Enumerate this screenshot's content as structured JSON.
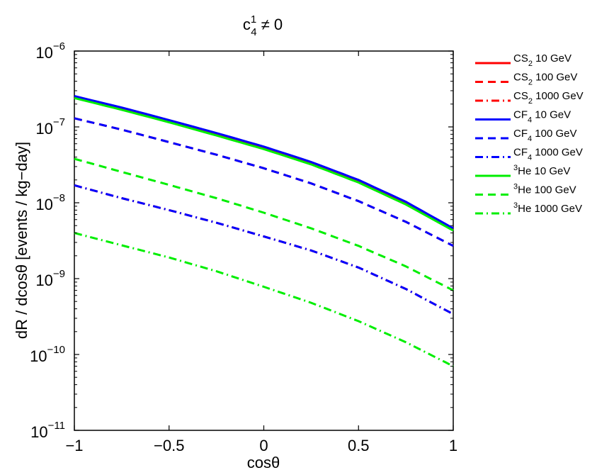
{
  "chart_data": {
    "type": "line",
    "title": {
      "base": "c",
      "sup": "1",
      "sub": "4",
      "rest": " ≠ 0"
    },
    "xlabel": "cosθ",
    "ylabel": "dR / dcosθ  [events / kg−day]",
    "xlim": [
      -1,
      1
    ],
    "ylim": [
      1e-11,
      1e-06
    ],
    "yscale": "log",
    "grid": false,
    "legend_position": "outside-right",
    "x_ticks": [
      -1,
      -0.5,
      0,
      0.5,
      1
    ],
    "x_tick_labels": [
      "−1",
      "−0.5",
      "0",
      "0.5",
      "1"
    ],
    "y_ticks": [
      {
        "value": 1e-06,
        "base": "10",
        "exp": "−6"
      },
      {
        "value": 1e-07,
        "base": "10",
        "exp": "−7"
      },
      {
        "value": 1e-08,
        "base": "10",
        "exp": "−8"
      },
      {
        "value": 1e-09,
        "base": "10",
        "exp": "−9"
      },
      {
        "value": 1e-10,
        "base": "10",
        "exp": "−10"
      },
      {
        "value": 1e-11,
        "base": "10",
        "exp": "−11"
      }
    ],
    "x": [
      -1,
      -0.75,
      -0.5,
      -0.25,
      0,
      0.25,
      0.5,
      0.75,
      1
    ],
    "series": [
      {
        "name": "CS2 10 GeV",
        "legend": {
          "pre": "",
          "main": "CS",
          "sup": "",
          "sub": "2",
          "post": " 10 GeV"
        },
        "color": "#ff0000",
        "dash": "solid",
        "values": [
          2.45e-07,
          1.72e-07,
          1.17e-07,
          7.9e-08,
          5.25e-08,
          3.3e-08,
          1.9e-08,
          9.8e-09,
          4.4e-09
        ]
      },
      {
        "name": "CS2 100 GeV",
        "legend": {
          "pre": "",
          "main": "CS",
          "sup": "",
          "sub": "2",
          "post": " 100 GeV"
        },
        "color": "#ff0000",
        "dash": "dashed",
        "values": [
          1.3e-07,
          9.2e-08,
          6.3e-08,
          4.3e-08,
          2.85e-08,
          1.8e-08,
          1.05e-08,
          5.6e-09,
          2.7e-09
        ]
      },
      {
        "name": "CS2 1000 GeV",
        "legend": {
          "pre": "",
          "main": "CS",
          "sup": "",
          "sub": "2",
          "post": " 1000 GeV"
        },
        "color": "#ff0000",
        "dash": "dashdot",
        "values": [
          1.7e-08,
          1.15e-08,
          8e-09,
          5.45e-09,
          3.6e-09,
          2.35e-09,
          1.4e-09,
          7.3e-10,
          3.4e-10
        ]
      },
      {
        "name": "CF4 10 GeV",
        "legend": {
          "pre": "",
          "main": "CF",
          "sup": "",
          "sub": "4",
          "post": " 10 GeV"
        },
        "color": "#0000ff",
        "dash": "solid",
        "values": [
          2.55e-07,
          1.8e-07,
          1.23e-07,
          8.3e-08,
          5.5e-08,
          3.45e-08,
          2e-08,
          1.03e-08,
          4.6e-09
        ]
      },
      {
        "name": "CF4 100 GeV",
        "legend": {
          "pre": "",
          "main": "CF",
          "sup": "",
          "sub": "4",
          "post": " 100 GeV"
        },
        "color": "#0000ff",
        "dash": "dashed",
        "values": [
          1.3e-07,
          9.2e-08,
          6.3e-08,
          4.3e-08,
          2.85e-08,
          1.8e-08,
          1.05e-08,
          5.6e-09,
          2.7e-09
        ]
      },
      {
        "name": "CF4 1000 GeV",
        "legend": {
          "pre": "",
          "main": "CF",
          "sup": "",
          "sub": "4",
          "post": " 1000 GeV"
        },
        "color": "#0000ff",
        "dash": "dashdot",
        "values": [
          1.7e-08,
          1.15e-08,
          8e-09,
          5.45e-09,
          3.6e-09,
          2.35e-09,
          1.4e-09,
          7.3e-10,
          3.4e-10
        ]
      },
      {
        "name": "3He 10 GeV",
        "legend": {
          "pre": "",
          "main": "He",
          "sup": "3",
          "sub": "",
          "post": " 10 GeV"
        },
        "color": "#00ee00",
        "dash": "solid",
        "values": [
          2.4e-07,
          1.68e-07,
          1.15e-07,
          7.7e-08,
          5.1e-08,
          3.2e-08,
          1.85e-08,
          9.5e-09,
          4.3e-09
        ]
      },
      {
        "name": "3He 100 GeV",
        "legend": {
          "pre": "",
          "main": "He",
          "sup": "3",
          "sub": "",
          "post": " 100 GeV"
        },
        "color": "#00ee00",
        "dash": "dashed",
        "values": [
          3.8e-08,
          2.55e-08,
          1.72e-08,
          1.15e-08,
          7.4e-09,
          4.6e-09,
          2.7e-09,
          1.45e-09,
          7e-10
        ]
      },
      {
        "name": "3He 1000 GeV",
        "legend": {
          "pre": "",
          "main": "He",
          "sup": "3",
          "sub": "",
          "post": " 1000 GeV"
        },
        "color": "#00ee00",
        "dash": "dashdot",
        "values": [
          4e-09,
          2.75e-09,
          1.9e-09,
          1.25e-09,
          7.8e-10,
          4.8e-10,
          2.75e-10,
          1.45e-10,
          7e-11
        ]
      }
    ]
  }
}
